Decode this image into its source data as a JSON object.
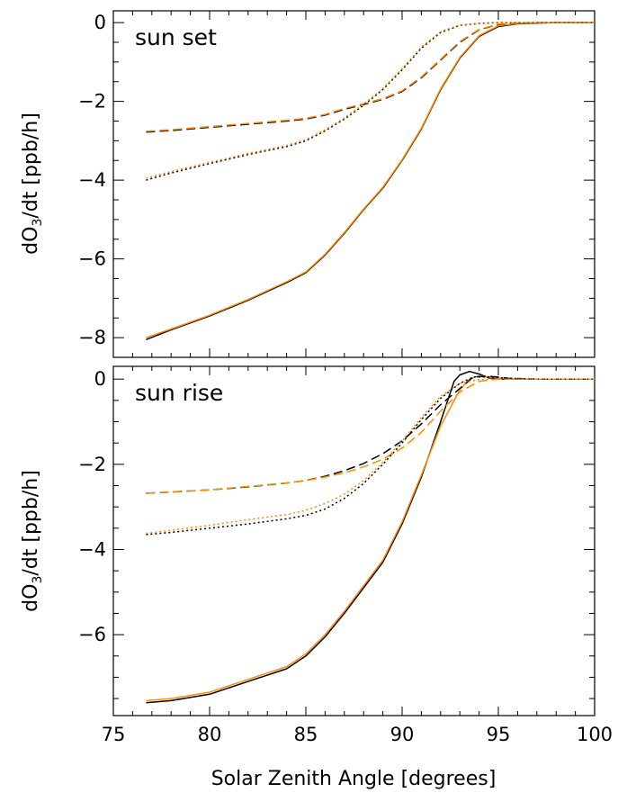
{
  "figure": {
    "xlabel": "Solar Zenith Angle [degrees]"
  },
  "colors": {
    "black": "#000000",
    "orange": "#ff8c00"
  },
  "chart_data": [
    {
      "type": "line",
      "title": "sun set",
      "xlabel": "Solar Zenith Angle [degrees]",
      "ylabel": "dO3/dt [ppb/h]",
      "xlim": [
        75,
        100
      ],
      "ylim": [
        -8.5,
        0.3
      ],
      "xticks": [
        75,
        80,
        85,
        90,
        95,
        100
      ],
      "xtick_labels": [
        "",
        "",
        "",
        "",
        "",
        ""
      ],
      "yticks": [
        0,
        -2,
        -4,
        -6,
        -8
      ],
      "ytick_labels": [
        "0",
        "−2",
        "−4",
        "−6",
        "−8"
      ],
      "grid": false,
      "series": [
        {
          "style": "solid",
          "color": "#000000",
          "x": [
            76.7,
            78,
            80,
            82,
            84,
            85,
            86,
            87,
            88,
            89,
            90,
            91,
            92,
            93,
            94,
            95,
            96,
            97,
            98,
            99,
            100
          ],
          "y": [
            -8.05,
            -7.8,
            -7.45,
            -7.05,
            -6.6,
            -6.35,
            -5.9,
            -5.35,
            -4.75,
            -4.2,
            -3.5,
            -2.7,
            -1.7,
            -0.9,
            -0.35,
            -0.1,
            -0.03,
            -0.01,
            0,
            0,
            0
          ]
        },
        {
          "style": "solid",
          "color": "#ff8c00",
          "x": [
            76.7,
            78,
            80,
            82,
            84,
            85,
            86,
            87,
            88,
            89,
            90,
            91,
            92,
            93,
            94,
            95,
            96,
            97,
            98,
            99,
            100
          ],
          "y": [
            -8.0,
            -7.78,
            -7.43,
            -7.03,
            -6.58,
            -6.33,
            -5.88,
            -5.33,
            -4.73,
            -4.18,
            -3.48,
            -2.68,
            -1.68,
            -0.88,
            -0.33,
            -0.08,
            -0.02,
            0,
            0,
            0,
            0
          ]
        },
        {
          "style": "dashed",
          "color": "#000000",
          "x": [
            76.7,
            78,
            80,
            82,
            84,
            85,
            86,
            87,
            88,
            89,
            90,
            91,
            92,
            93,
            94,
            95,
            96,
            97,
            98,
            99,
            100
          ],
          "y": [
            -2.78,
            -2.74,
            -2.66,
            -2.58,
            -2.5,
            -2.45,
            -2.35,
            -2.2,
            -2.08,
            -1.95,
            -1.75,
            -1.4,
            -0.95,
            -0.5,
            -0.18,
            -0.05,
            -0.01,
            0,
            0,
            0,
            0
          ]
        },
        {
          "style": "dashed",
          "color": "#ff8c00",
          "x": [
            76.7,
            78,
            80,
            82,
            84,
            85,
            86,
            87,
            88,
            89,
            90,
            91,
            92,
            93,
            94,
            95,
            96,
            97,
            98,
            99,
            100
          ],
          "y": [
            -2.76,
            -2.72,
            -2.64,
            -2.56,
            -2.48,
            -2.43,
            -2.33,
            -2.18,
            -2.06,
            -1.93,
            -1.73,
            -1.38,
            -0.93,
            -0.48,
            -0.17,
            -0.04,
            -0.01,
            0,
            0,
            0,
            0
          ]
        },
        {
          "style": "dotted",
          "color": "#000000",
          "x": [
            76.7,
            78,
            80,
            82,
            84,
            85,
            86,
            87,
            88,
            89,
            90,
            91,
            92,
            93,
            94,
            95,
            96,
            97,
            98,
            99,
            100
          ],
          "y": [
            -4.0,
            -3.82,
            -3.58,
            -3.35,
            -3.15,
            -3.0,
            -2.75,
            -2.45,
            -2.1,
            -1.7,
            -1.2,
            -0.65,
            -0.25,
            -0.07,
            -0.02,
            0,
            0,
            0,
            0,
            0,
            0
          ]
        },
        {
          "style": "dotted",
          "color": "#ff8c00",
          "x": [
            76.7,
            78,
            80,
            82,
            84,
            85,
            86,
            87,
            88,
            89,
            90,
            91,
            92,
            93,
            94,
            95,
            96,
            97,
            98,
            99,
            100
          ],
          "y": [
            -3.95,
            -3.78,
            -3.55,
            -3.32,
            -3.12,
            -2.97,
            -2.72,
            -2.42,
            -2.07,
            -1.67,
            -1.17,
            -0.62,
            -0.23,
            -0.06,
            -0.02,
            0,
            0,
            0,
            0,
            0,
            0
          ]
        }
      ]
    },
    {
      "type": "line",
      "title": "sun rise",
      "xlabel": "Solar Zenith Angle [degrees]",
      "ylabel": "dO3/dt [ppb/h]",
      "xlim": [
        75,
        100
      ],
      "ylim": [
        -7.9,
        0.3
      ],
      "xticks": [
        75,
        80,
        85,
        90,
        95,
        100
      ],
      "xtick_labels": [
        "75",
        "80",
        "85",
        "90",
        "95",
        "100"
      ],
      "yticks": [
        0,
        -2,
        -4,
        -6
      ],
      "ytick_labels": [
        "0",
        "−2",
        "−4",
        "−6"
      ],
      "grid": false,
      "series": [
        {
          "style": "solid",
          "color": "#000000",
          "x": [
            76.7,
            78,
            80,
            82,
            84,
            85,
            86,
            87,
            88,
            89,
            90,
            91,
            92,
            92.7,
            93.0,
            93.5,
            94.0,
            94.5,
            95,
            96,
            98,
            100
          ],
          "y": [
            -7.6,
            -7.55,
            -7.4,
            -7.1,
            -6.8,
            -6.5,
            -6.05,
            -5.5,
            -4.9,
            -4.3,
            -3.4,
            -2.3,
            -1.0,
            -0.05,
            0.1,
            0.18,
            0.12,
            0.03,
            0,
            0,
            0,
            0
          ]
        },
        {
          "style": "solid",
          "color": "#ff8c00",
          "x": [
            76.7,
            78,
            80,
            82,
            84,
            85,
            86,
            87,
            88,
            89,
            90,
            91,
            92,
            93,
            93.5,
            94,
            95,
            96,
            98,
            100
          ],
          "y": [
            -7.55,
            -7.5,
            -7.35,
            -7.05,
            -6.75,
            -6.45,
            -6.0,
            -5.45,
            -4.85,
            -4.25,
            -3.35,
            -2.25,
            -1.1,
            -0.25,
            0.0,
            0.08,
            0.02,
            0,
            0,
            0
          ]
        },
        {
          "style": "dashed",
          "color": "#000000",
          "x": [
            76.7,
            78,
            80,
            82,
            84,
            85,
            86,
            87,
            88,
            89,
            90,
            91,
            92,
            93,
            93.7,
            94.5,
            95.5,
            97,
            100
          ],
          "y": [
            -2.68,
            -2.65,
            -2.6,
            -2.53,
            -2.44,
            -2.38,
            -2.28,
            -2.15,
            -1.98,
            -1.75,
            -1.45,
            -1.05,
            -0.6,
            -0.22,
            0.05,
            0.07,
            0.02,
            0,
            0
          ]
        },
        {
          "style": "dashed",
          "color": "#ff8c00",
          "x": [
            76.7,
            78,
            80,
            82,
            84,
            85,
            86,
            87,
            88,
            89,
            90,
            91,
            92,
            93,
            94,
            95,
            96,
            100
          ],
          "y": [
            -2.68,
            -2.65,
            -2.6,
            -2.52,
            -2.44,
            -2.38,
            -2.3,
            -2.2,
            -2.06,
            -1.88,
            -1.62,
            -1.25,
            -0.75,
            -0.3,
            -0.05,
            0,
            0,
            0
          ]
        },
        {
          "style": "dotted",
          "color": "#000000",
          "x": [
            76.7,
            78,
            80,
            82,
            84,
            85,
            86,
            87,
            88,
            89,
            90,
            91,
            92,
            93,
            93.7,
            94.5,
            95.5,
            97,
            100
          ],
          "y": [
            -3.65,
            -3.6,
            -3.5,
            -3.4,
            -3.28,
            -3.2,
            -3.05,
            -2.8,
            -2.45,
            -2.0,
            -1.5,
            -0.95,
            -0.45,
            -0.1,
            0.05,
            0.05,
            0.02,
            0,
            0
          ]
        },
        {
          "style": "dotted",
          "color": "#ff8c00",
          "x": [
            76.7,
            78,
            80,
            82,
            84,
            85,
            86,
            87,
            88,
            89,
            90,
            91,
            92,
            93,
            94,
            95,
            96,
            100
          ],
          "y": [
            -3.62,
            -3.55,
            -3.43,
            -3.3,
            -3.18,
            -3.08,
            -2.92,
            -2.7,
            -2.38,
            -1.95,
            -1.45,
            -0.9,
            -0.4,
            -0.1,
            -0.01,
            0,
            0,
            0
          ]
        }
      ]
    }
  ]
}
